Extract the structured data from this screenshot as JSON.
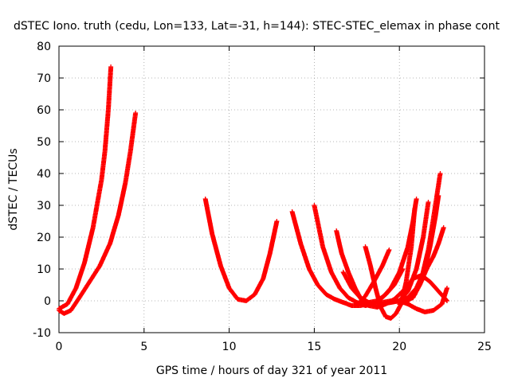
{
  "chart_data": {
    "type": "scatter",
    "title": "dSTEC Iono. truth (cedu, Lon=133, Lat=-31, h=144): STEC-STEC_elemax in phase cont",
    "xlabel": "GPS time / hours of day 321 of year 2011",
    "ylabel": "dSTEC  / TECUs",
    "xlim": [
      0,
      25
    ],
    "ylim": [
      -10,
      80
    ],
    "xticks": [
      0,
      5,
      10,
      15,
      20,
      25
    ],
    "yticks": [
      -10,
      0,
      10,
      20,
      30,
      40,
      50,
      60,
      70,
      80
    ],
    "grid": true,
    "marker": "plus",
    "color": "#ff0000",
    "series": [
      {
        "x": [
          0,
          0.5,
          1,
          1.5,
          2,
          2.5,
          2.7,
          2.9,
          3.05
        ],
        "y": [
          -2.5,
          -1,
          4,
          12,
          23,
          38,
          47,
          60,
          73.5
        ]
      },
      {
        "x": [
          0,
          0.3,
          0.7,
          1.2,
          1.8,
          2.4,
          3,
          3.5,
          3.9,
          4.2,
          4.5
        ],
        "y": [
          -3,
          -4,
          -3,
          1,
          6,
          11,
          18,
          27,
          37,
          47,
          59
        ]
      },
      {
        "x": [
          8.6,
          9,
          9.5,
          10,
          10.5,
          11,
          11.5,
          12,
          12.4,
          12.8
        ],
        "y": [
          32,
          21,
          11,
          4,
          0.5,
          0,
          2,
          7,
          15,
          25
        ]
      },
      {
        "x": [
          13.7,
          14.2,
          14.7,
          15.2,
          15.7,
          16.2,
          16.7,
          17.2,
          17.7,
          18.2
        ],
        "y": [
          28,
          18,
          10,
          5,
          2,
          0.5,
          -0.5,
          -1.5,
          -1.5,
          -1
        ]
      },
      {
        "x": [
          15,
          15.5,
          16,
          16.5,
          17,
          17.5,
          18,
          18.5,
          19,
          19.5,
          20,
          20.5,
          21,
          21.5,
          22,
          22.5,
          22.8
        ],
        "y": [
          30,
          17,
          9,
          4,
          1,
          -0.5,
          -1.5,
          -1,
          -0.5,
          0,
          0,
          -1,
          -2.5,
          -3.5,
          -3,
          -1,
          4
        ]
      },
      {
        "x": [
          16.3,
          16.6,
          17,
          17.4,
          17.8,
          18.2,
          18.7,
          19.2,
          19.7,
          20.2,
          20.8,
          21.3,
          21.8,
          22.3,
          22.8
        ],
        "y": [
          22,
          15,
          9,
          4,
          0,
          -1.5,
          -2,
          -1,
          0.5,
          3,
          7,
          8,
          6,
          3,
          0
        ]
      },
      {
        "x": [
          16.7,
          17.2,
          17.7,
          18.2,
          18.7,
          19.2,
          19.7,
          20.2
        ],
        "y": [
          9,
          4,
          1,
          -0.5,
          0,
          2,
          5,
          10
        ]
      },
      {
        "x": [
          18,
          18.3,
          18.6,
          18.9,
          19.2,
          19.5,
          19.8,
          20.1,
          20.4,
          20.7,
          20.9
        ],
        "y": [
          17,
          11,
          4,
          -2,
          -5,
          -5.5,
          -4,
          -1,
          6,
          17,
          29
        ]
      },
      {
        "x": [
          17.5,
          18,
          18.5,
          19,
          19.4
        ],
        "y": [
          -1.5,
          1.5,
          6,
          11,
          16
        ]
      },
      {
        "x": [
          18.5,
          19,
          19.5,
          20,
          20.5,
          20.8,
          21
        ],
        "y": [
          -1,
          1,
          4,
          9,
          17,
          25,
          32
        ]
      },
      {
        "x": [
          19,
          19.5,
          20,
          20.5,
          21,
          21.5,
          21.8,
          22.1,
          22.3
        ],
        "y": [
          -1,
          -0.5,
          0,
          1,
          4,
          10,
          17,
          26,
          33
        ]
      },
      {
        "x": [
          19.5,
          20,
          20.5,
          21,
          21.4,
          21.7
        ],
        "y": [
          -0.5,
          0,
          3,
          10,
          20,
          31
        ]
      },
      {
        "x": [
          19.9,
          20.4,
          20.9,
          21.3,
          21.7,
          22,
          22.4
        ],
        "y": [
          -0.5,
          -0.5,
          2,
          7,
          16,
          26,
          40
        ]
      },
      {
        "x": [
          20.4,
          20.8,
          21.2,
          21.6,
          22,
          22.3,
          22.6
        ],
        "y": [
          0,
          1,
          5,
          10,
          14,
          18,
          23
        ]
      }
    ]
  }
}
